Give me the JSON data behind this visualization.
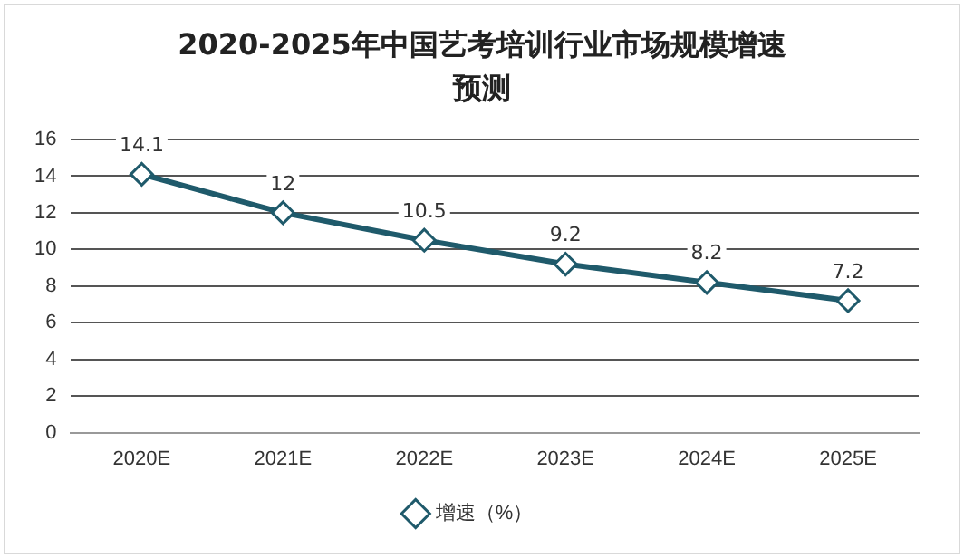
{
  "chart_data": {
    "type": "line",
    "title": "2020-2025年中国艺考培训行业市场规模增速预测",
    "categories": [
      "2020E",
      "2021E",
      "2022E",
      "2023E",
      "2024E",
      "2025E"
    ],
    "series": [
      {
        "name": "增速（%）",
        "color": "#1f5a6b",
        "values": [
          14.1,
          12,
          10.5,
          9.2,
          8.2,
          7.2
        ]
      }
    ],
    "ylim": [
      0,
      16
    ],
    "yticks": [
      0,
      2,
      4,
      6,
      8,
      10,
      12,
      14,
      16
    ],
    "grid": "y",
    "legend": "bottom",
    "marker": "diamond",
    "line_style": "solid",
    "data_labels": true
  }
}
